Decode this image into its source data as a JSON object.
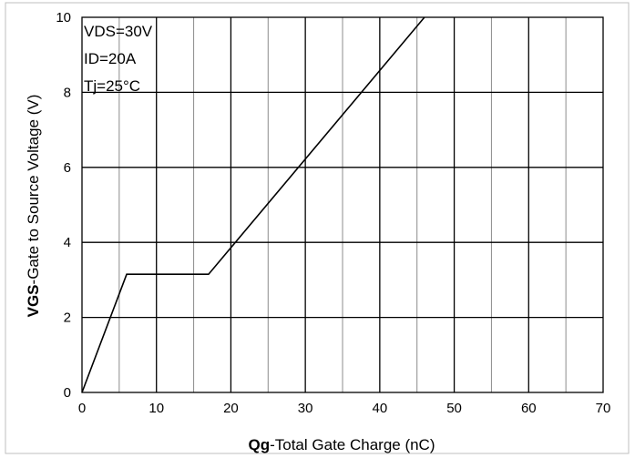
{
  "chart_data": {
    "type": "line",
    "xlabel_bold": "Qg",
    "xlabel_rest": "-Total Gate Charge (nC)",
    "ylabel_bold": "VGS",
    "ylabel_rest": "-Gate to Source Voltage (V)",
    "xlim": [
      0,
      70
    ],
    "ylim": [
      0,
      10
    ],
    "x_ticks": [
      0,
      10,
      20,
      30,
      40,
      50,
      60,
      70
    ],
    "y_ticks": [
      0,
      2,
      4,
      6,
      8,
      10
    ],
    "x_tick_labels": [
      "0",
      "10",
      "20",
      "30",
      "40",
      "50",
      "60",
      "70"
    ],
    "y_tick_labels": [
      "0",
      "2",
      "4",
      "6",
      "8",
      "10"
    ],
    "minor_x_step": 5,
    "major_x_step": 10,
    "major_y_step": 2,
    "grid": true,
    "annotations": [
      "VDS=30V",
      "ID=20A",
      "Tj=25°C"
    ],
    "series": [
      {
        "x": [
          0,
          6,
          17,
          46
        ],
        "y": [
          0,
          3.15,
          3.15,
          10
        ]
      }
    ]
  }
}
